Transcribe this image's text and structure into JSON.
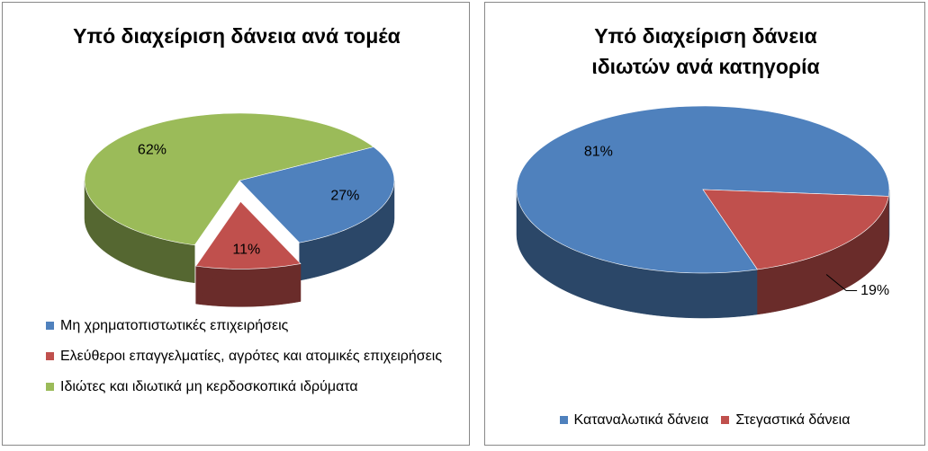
{
  "chart_data": [
    {
      "type": "pie",
      "title": "Υπό διαχείριση δάνεια ανά τομέα",
      "categories": [
        "Μη χρηματοπιστωτικές επιχειρήσεις",
        "Ελεύθεροι επαγγελματίες, αγρότες και ατομικές επιχειρήσεις",
        "Ιδιώτες και ιδιωτικά μη κερδοσκοπικά ιδρύματα"
      ],
      "values": [
        27,
        11,
        62
      ],
      "value_labels": [
        "27%",
        "11%",
        "62%"
      ],
      "colors": [
        "#4f81bd",
        "#c0504d",
        "#9bbb59"
      ],
      "legend": "bottom-left"
    },
    {
      "type": "pie",
      "title": "Υπό διαχείριση δάνεια ιδιωτών ανά κατηγορία",
      "categories": [
        "Καταναλωτικά δάνεια",
        "Στεγαστικά δάνεια"
      ],
      "values": [
        81,
        19
      ],
      "value_labels": [
        "81%",
        "19%"
      ],
      "colors": [
        "#4f81bd",
        "#c0504d"
      ],
      "legend": "bottom"
    }
  ]
}
